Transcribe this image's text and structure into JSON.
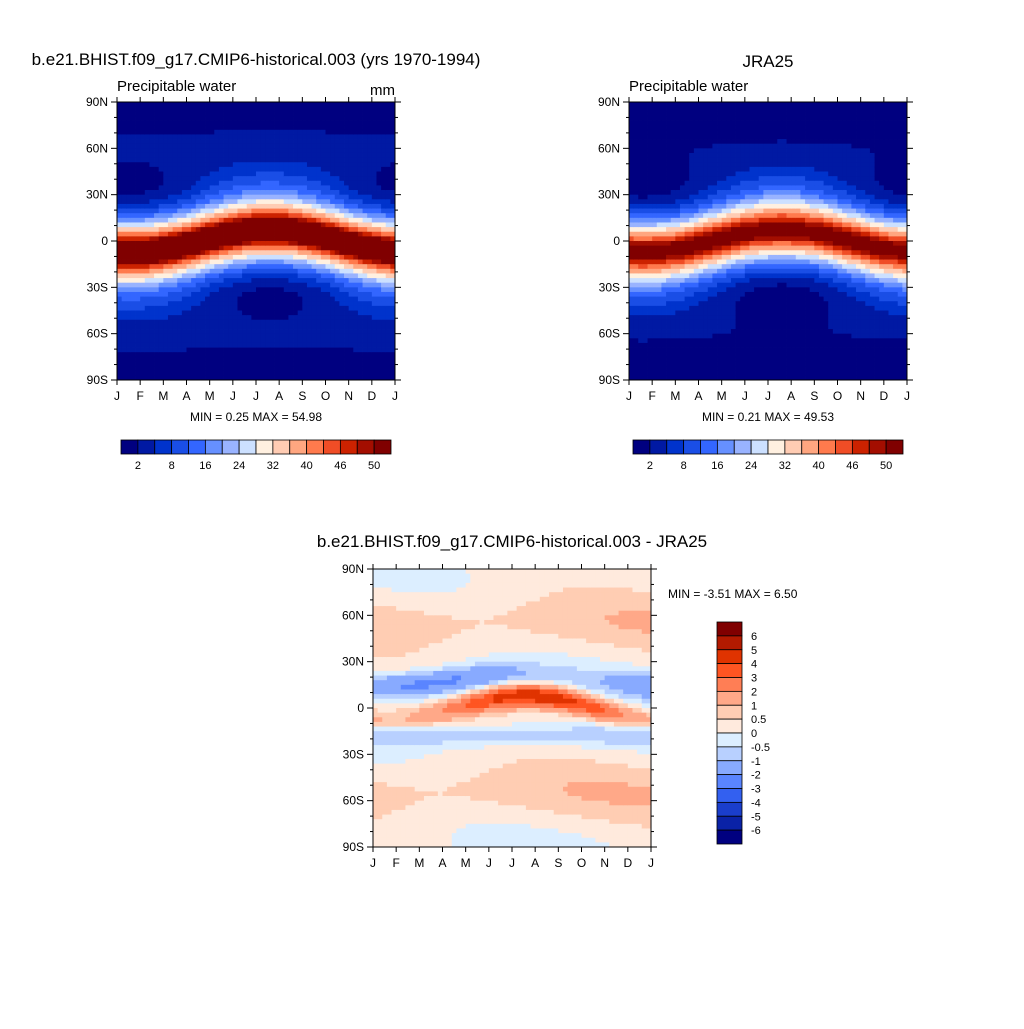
{
  "chart_data": [
    {
      "type": "heatmap",
      "title": "b.e21.BHIST.f09_g17.CMIP6-historical.003 (yrs 1970-1994)",
      "subtitle": "Precipitable water",
      "units": "mm",
      "x_ticks": [
        "J",
        "F",
        "M",
        "A",
        "M",
        "J",
        "J",
        "A",
        "S",
        "O",
        "N",
        "D",
        "J"
      ],
      "y_ticks": [
        "90N",
        "60N",
        "30N",
        "0",
        "30S",
        "60S",
        "90S"
      ],
      "minmax": "MIN =   0.25 MAX =  54.98",
      "colorbar_labels": [
        "2",
        "8",
        "16",
        "24",
        "32",
        "40",
        "46",
        "50"
      ],
      "field": "model",
      "ylim": [
        -90,
        90
      ]
    },
    {
      "type": "heatmap",
      "title": "JRA25",
      "subtitle": "Precipitable water",
      "x_ticks": [
        "J",
        "F",
        "M",
        "A",
        "M",
        "J",
        "J",
        "A",
        "S",
        "O",
        "N",
        "D",
        "J"
      ],
      "y_ticks": [
        "90N",
        "60N",
        "30N",
        "0",
        "30S",
        "60S",
        "90S"
      ],
      "minmax": "MIN =   0.21 MAX =  49.53",
      "colorbar_labels": [
        "2",
        "8",
        "16",
        "24",
        "32",
        "40",
        "46",
        "50"
      ],
      "field": "obs",
      "ylim": [
        -90,
        90
      ]
    },
    {
      "type": "heatmap",
      "title": "b.e21.BHIST.f09_g17.CMIP6-historical.003 - JRA25",
      "x_ticks": [
        "J",
        "F",
        "M",
        "A",
        "M",
        "J",
        "J",
        "A",
        "S",
        "O",
        "N",
        "D",
        "J"
      ],
      "y_ticks": [
        "90N",
        "60N",
        "30N",
        "0",
        "30S",
        "60S",
        "90S"
      ],
      "minmax": "MIN =  -3.51 MAX =   6.50",
      "colorbar_labels": [
        "6",
        "5",
        "4",
        "3",
        "2",
        "1",
        "0.5",
        "0",
        "-0.5",
        "-1",
        "-2",
        "-3",
        "-4",
        "-5",
        "-6"
      ],
      "field": "diff",
      "ylim": [
        -90,
        90
      ]
    }
  ],
  "colors": {
    "abs_levels": [
      "#000080",
      "#0019a3",
      "#0033cc",
      "#1a4ee6",
      "#3366ff",
      "#6690ff",
      "#99b3ff",
      "#cce0ff",
      "#fff0e0",
      "#ffccb3",
      "#ffa680",
      "#ff7a4d",
      "#f04d26",
      "#cc2200",
      "#a30e00",
      "#800000"
    ],
    "diff_levels": [
      "#800000",
      "#b31a00",
      "#e03300",
      "#ff5522",
      "#ff7e55",
      "#ffa888",
      "#ffcdb3",
      "#ffeadd",
      "#dceeff",
      "#b8d0ff",
      "#88aaff",
      "#5a85ff",
      "#3360f0",
      "#1a3ecc",
      "#0a22a6",
      "#000080"
    ]
  }
}
